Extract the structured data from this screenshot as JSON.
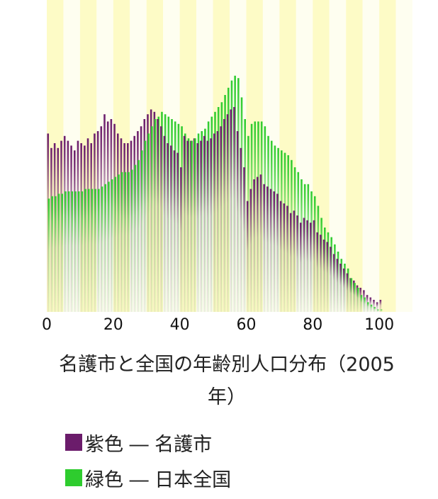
{
  "chart_data": {
    "type": "bar",
    "title": "名護市と全国の年齢別人口分布（2005年）",
    "xlim": [
      0,
      110
    ],
    "x_ticks": [
      "0",
      "20",
      "40",
      "60",
      "80",
      "100"
    ],
    "band_colors": [
      "#fdfbc6",
      "#fefef0"
    ],
    "grid": false,
    "series": [
      {
        "name": "名護市",
        "color": "#6b1c6b",
        "values": [
          74,
          68,
          70,
          68,
          71,
          73,
          71,
          69,
          67,
          71,
          70,
          69,
          72,
          70,
          74,
          75,
          77,
          82,
          79,
          80,
          78,
          74,
          72,
          70,
          70,
          71,
          73,
          75,
          77,
          80,
          82,
          84,
          83,
          80,
          77,
          73,
          70,
          69,
          67,
          66,
          60,
          73,
          71,
          71,
          72,
          70,
          71,
          73,
          71,
          72,
          74,
          75,
          77,
          80,
          82,
          84,
          85,
          75,
          68,
          60,
          46,
          51,
          55,
          56,
          57,
          53,
          52,
          51,
          50,
          49,
          46,
          45,
          44,
          41,
          42,
          40,
          37,
          39,
          38,
          37,
          38,
          33,
          32,
          30,
          29,
          27,
          24,
          22,
          20,
          18,
          16,
          14,
          13,
          11,
          10,
          9,
          7,
          6,
          5,
          4,
          5
        ]
      },
      {
        "name": "日本全国",
        "color": "#2ecc2e",
        "values": [
          47,
          48,
          48,
          49,
          49,
          50,
          50,
          50,
          50,
          50,
          50,
          51,
          51,
          51,
          51,
          51,
          52,
          53,
          54,
          55,
          56,
          57,
          58,
          58,
          58,
          59,
          61,
          63,
          67,
          71,
          74,
          77,
          80,
          81,
          83,
          82,
          81,
          80,
          79,
          78,
          77,
          74,
          72,
          71,
          72,
          74,
          75,
          76,
          79,
          81,
          83,
          85,
          87,
          90,
          93,
          96,
          98,
          97,
          89,
          80,
          73,
          78,
          79,
          79,
          79,
          77,
          73,
          71,
          69,
          68,
          67,
          66,
          65,
          63,
          60,
          58,
          55,
          53,
          53,
          50,
          48,
          44,
          39,
          35,
          33,
          31,
          28,
          25,
          22,
          20,
          18,
          14,
          12,
          10,
          7,
          6,
          4,
          3,
          2,
          1,
          1
        ]
      }
    ]
  },
  "caption": {
    "line1": "名護市と全国の年齢別人口分布（2005",
    "line2": "年）"
  },
  "legend": [
    {
      "swatch_color": "#6b1c6b",
      "label": "紫色 ― 名護市"
    },
    {
      "swatch_color": "#2ecc2e",
      "label": "緑色 ― 日本全国"
    }
  ]
}
